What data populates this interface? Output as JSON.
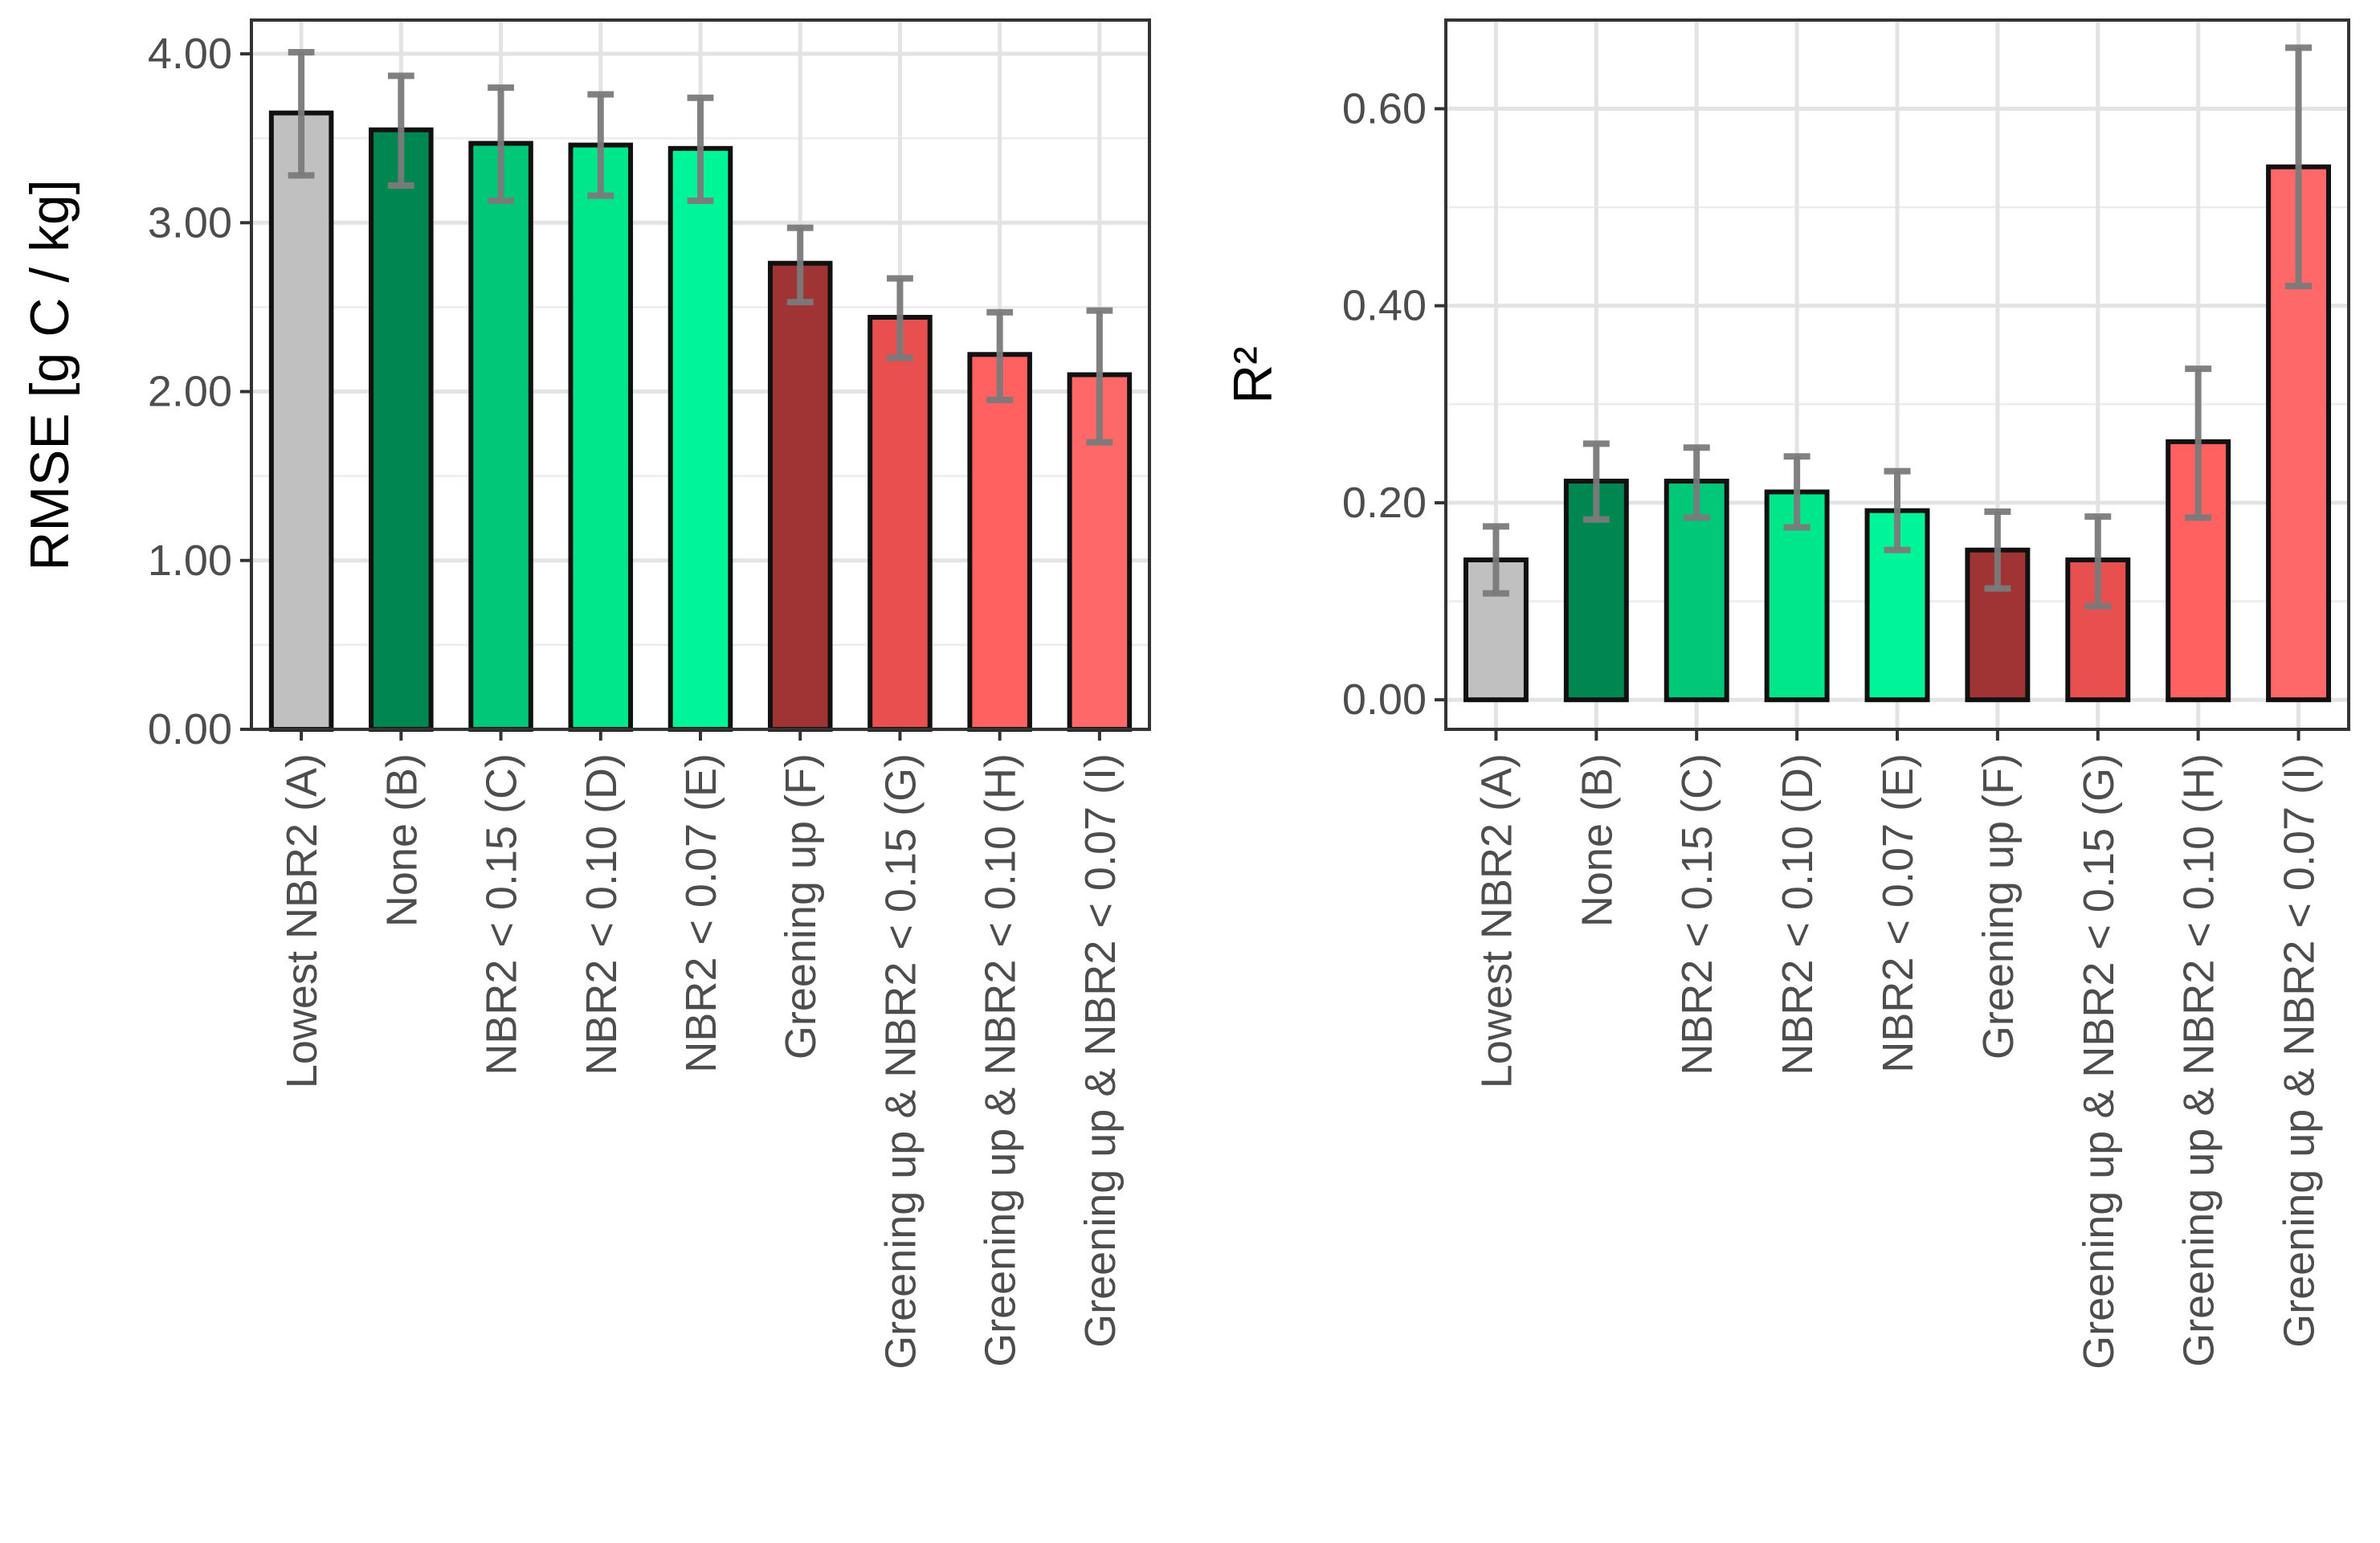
{
  "chart_data": [
    {
      "type": "bar",
      "title": "",
      "xlabel": "",
      "ylabel": "RMSE [g C / kg]",
      "ylim": [
        0,
        4.2
      ],
      "yticks": [
        "0.00",
        "1.00",
        "2.00",
        "3.00",
        "4.00"
      ],
      "ytick_values": [
        0,
        1,
        2,
        3,
        4
      ],
      "grid": true,
      "categories": [
        "Lowest NBR2 (A)",
        "None (B)",
        "NBR2 < 0.15 (C)",
        "NBR2 < 0.10 (D)",
        "NBR2 < 0.07 (E)",
        "Greening up (F)",
        "Greening up & NBR2 < 0.15 (G)",
        "Greening up & NBR2 < 0.10 (H)",
        "Greening up & NBR2 < 0.07  (I)"
      ],
      "values": [
        3.65,
        3.55,
        3.47,
        3.46,
        3.44,
        2.76,
        2.44,
        2.22,
        2.1
      ],
      "err_low": [
        3.28,
        3.22,
        3.13,
        3.16,
        3.13,
        2.53,
        2.2,
        1.95,
        1.7
      ],
      "err_high": [
        4.01,
        3.87,
        3.8,
        3.76,
        3.74,
        2.97,
        2.67,
        2.47,
        2.48
      ],
      "colors": [
        "#c0c0c0",
        "#008751",
        "#00c878",
        "#00e68a",
        "#00f598",
        "#a03434",
        "#e85050",
        "#ff6060",
        "#ff6868"
      ]
    },
    {
      "type": "bar",
      "title": "",
      "xlabel": "",
      "ylabel": "R²",
      "ylim": [
        -0.03,
        0.69
      ],
      "yticks": [
        "0.00",
        "0.20",
        "0.40",
        "0.60"
      ],
      "ytick_values": [
        0,
        0.2,
        0.4,
        0.6
      ],
      "grid": true,
      "categories": [
        "Lowest NBR2 (A)",
        "None (B)",
        "NBR2 < 0.15 (C)",
        "NBR2 < 0.10 (D)",
        "NBR2 < 0.07 (E)",
        "Greening up (F)",
        "Greening up & NBR2 < 0.15 (G)",
        "Greening up & NBR2 < 0.10 (H)",
        "Greening up & NBR2 < 0.07  (I)"
      ],
      "values": [
        0.142,
        0.222,
        0.222,
        0.211,
        0.192,
        0.152,
        0.142,
        0.262,
        0.541
      ],
      "err_low": [
        0.108,
        0.183,
        0.185,
        0.175,
        0.152,
        0.113,
        0.095,
        0.185,
        0.42
      ],
      "err_high": [
        0.176,
        0.26,
        0.256,
        0.247,
        0.232,
        0.191,
        0.186,
        0.336,
        0.662
      ],
      "colors": [
        "#c0c0c0",
        "#008751",
        "#00c878",
        "#00e68a",
        "#00f598",
        "#a03434",
        "#e85050",
        "#ff6060",
        "#ff6868"
      ]
    }
  ]
}
